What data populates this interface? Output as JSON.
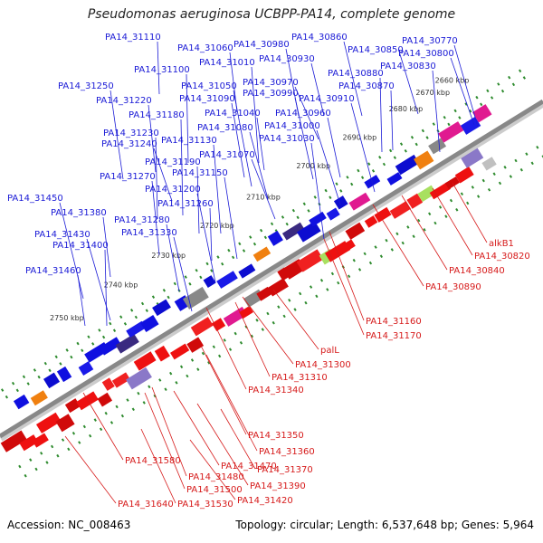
{
  "title": "Pseudomonas aeruginosa UCBPP-PA14, complete genome",
  "footer": {
    "accession": "Accession: NC_008463",
    "summary": "Topology: circular; Length: 6,537,648 bp; Genes: 5,964"
  },
  "colors": {
    "forward_label": "#1a1ad6",
    "reverse_label": "#d61a1a",
    "backbone": "#888888",
    "tick": "#2e8b2e"
  },
  "kbp_ticks": [
    "2660 kbp",
    "2670 kbp",
    "2680 kbp",
    "2690 kbp",
    "2700 kbp",
    "2710 kbp",
    "2720 kbp",
    "2730 kbp",
    "2740 kbp",
    "2750 kbp"
  ],
  "forward_labels": [
    "PA14_31110",
    "PA14_31060",
    "PA14_30980",
    "PA14_30860",
    "PA14_30770",
    "PA14_31100",
    "PA14_31010",
    "PA14_30930",
    "PA14_30850",
    "PA14_30800",
    "PA14_30880",
    "PA14_30830",
    "PA14_31250",
    "PA14_31050",
    "PA14_30970",
    "PA14_30870",
    "PA14_31220",
    "PA14_31090",
    "PA14_30990",
    "PA14_30910",
    "PA14_31180",
    "PA14_31040",
    "PA14_30960",
    "PA14_31080",
    "PA14_31000",
    "PA14_31230",
    "PA14_31130",
    "PA14_31030",
    "PA14_31240",
    "PA14_31070",
    "PA14_31190",
    "PA14_31270",
    "PA14_31150",
    "PA14_31200",
    "PA14_31450",
    "PA14_31260",
    "PA14_31380",
    "PA14_31280",
    "PA14_31330",
    "PA14_31430",
    "PA14_31400",
    "PA14_31460"
  ],
  "reverse_labels": [
    "alkB1",
    "PA14_30820",
    "PA14_30840",
    "PA14_30890",
    "PA14_31160",
    "PA14_31170",
    "palL",
    "PA14_31300",
    "PA14_31310",
    "PA14_31340",
    "PA14_31350",
    "PA14_31360",
    "PA14_31370",
    "PA14_31580",
    "PA14_31470",
    "PA14_31390",
    "PA14_31480",
    "PA14_31500",
    "PA14_31420",
    "PA14_31640",
    "PA14_31530"
  ]
}
